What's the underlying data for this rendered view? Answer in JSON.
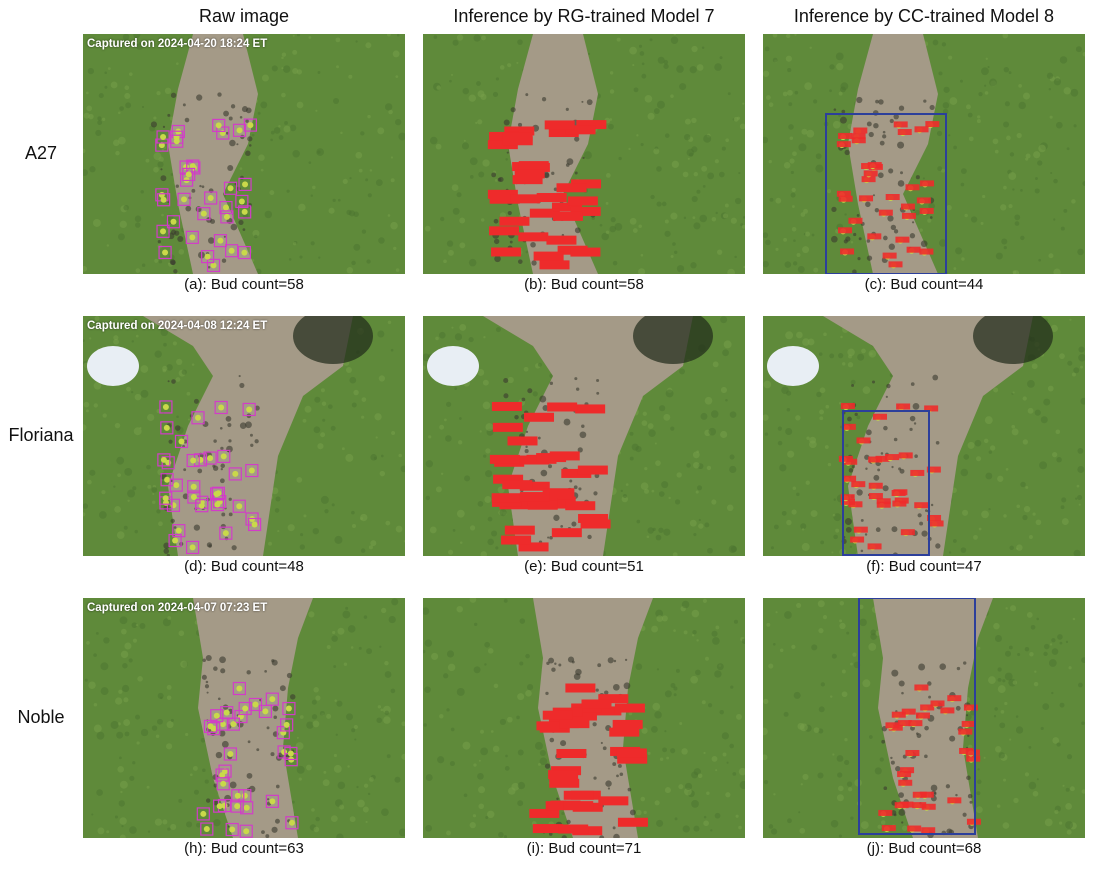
{
  "columns": [
    "Raw image",
    "Inference by RG-trained Model 7",
    "Inference by CC-trained Model 8"
  ],
  "rows": [
    {
      "label": "A27",
      "timestamp": "Captured on 2024-04-20 18:24 ET",
      "captions": [
        "(a): Bud count=58",
        "(b): Bud count=58",
        "(c): Bud count=44"
      ]
    },
    {
      "label": "Floriana",
      "timestamp": "Captured on 2024-04-08 12:24 ET",
      "captions": [
        "(d): Bud count=48",
        "(e): Bud count=51",
        "(f): Bud count=47"
      ]
    },
    {
      "label": "Noble",
      "timestamp": "Captured on 2024-04-07 07:23 ET",
      "captions": [
        "(h): Bud count=63",
        "(i): Bud count=71",
        "(j): Bud count=68"
      ]
    }
  ],
  "colors": {
    "grass": "#5f8a3a",
    "soil": "#a49a87",
    "raw_box": "#d23cc8",
    "model7_label": "#ee2b2b",
    "model8_box": "#2c3f9b"
  }
}
